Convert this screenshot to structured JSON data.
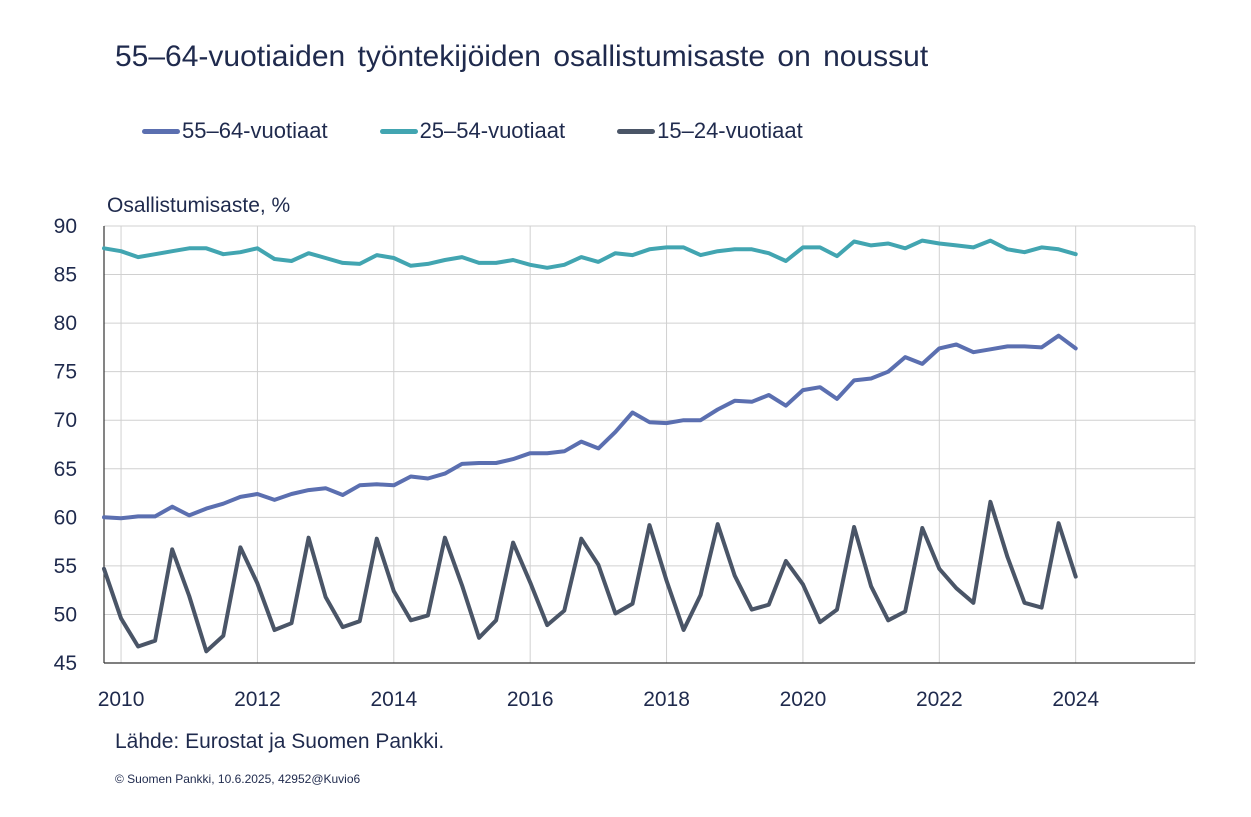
{
  "title": "55–64-vuotiaiden työntekijöiden osallistumisaste on noussut",
  "source": "Lähde: Eurostat ja Suomen Pankki.",
  "copyright": "© Suomen Pankki, 10.6.2025,  42952@Kuvio6",
  "colors": {
    "s55_64": "#5b6fb0",
    "s25_54": "#42a5b1",
    "s15_24": "#4a5567",
    "grid": "#d0d0d0",
    "axis": "#333333",
    "text": "#1f2a4d"
  },
  "chart_data": {
    "type": "line",
    "title": "55–64-vuotiaiden työntekijöiden osallistumisaste on noussut",
    "ylabel": "Osallistumisaste, %",
    "xlabel": "",
    "ylim": [
      45,
      90
    ],
    "yticks": [
      45,
      50,
      55,
      60,
      65,
      70,
      75,
      80,
      85,
      90
    ],
    "xlim": [
      2009.75,
      2025.75
    ],
    "xticks": [
      2010,
      2012,
      2014,
      2016,
      2018,
      2020,
      2022,
      2024
    ],
    "x_start": 2009.75,
    "x_step": 0.25,
    "grid": true,
    "legend": "top",
    "series": [
      {
        "name": "55–64-vuotiaat",
        "color_key": "s55_64",
        "values": [
          60.0,
          59.9,
          60.1,
          60.1,
          61.1,
          60.2,
          60.9,
          61.4,
          62.1,
          62.4,
          61.8,
          62.4,
          62.8,
          63.0,
          62.3,
          63.3,
          63.4,
          63.3,
          64.2,
          64.0,
          64.5,
          65.5,
          65.6,
          65.6,
          66.0,
          66.6,
          66.6,
          66.8,
          67.8,
          67.1,
          68.8,
          70.8,
          69.8,
          69.7,
          70.0,
          70.0,
          71.1,
          72.0,
          71.9,
          72.6,
          71.5,
          73.1,
          73.4,
          72.2,
          74.1,
          74.3,
          75.0,
          76.5,
          75.8,
          77.4,
          77.8,
          77.0,
          77.3,
          77.6,
          77.6,
          77.5,
          78.7,
          77.4
        ]
      },
      {
        "name": "25–54-vuotiaat",
        "color_key": "s25_54",
        "values": [
          87.7,
          87.4,
          86.8,
          87.1,
          87.4,
          87.7,
          87.7,
          87.1,
          87.3,
          87.7,
          86.6,
          86.4,
          87.2,
          86.7,
          86.2,
          86.1,
          87.0,
          86.7,
          85.9,
          86.1,
          86.5,
          86.8,
          86.2,
          86.2,
          86.5,
          86.0,
          85.7,
          86.0,
          86.8,
          86.3,
          87.2,
          87.0,
          87.6,
          87.8,
          87.8,
          87.0,
          87.4,
          87.6,
          87.6,
          87.2,
          86.4,
          87.8,
          87.8,
          86.9,
          88.4,
          88.0,
          88.2,
          87.7,
          88.5,
          88.2,
          88.0,
          87.8,
          88.5,
          87.6,
          87.3,
          87.8,
          87.6,
          87.1
        ]
      },
      {
        "name": "15–24-vuotiaat",
        "color_key": "s15_24",
        "values": [
          54.7,
          49.6,
          46.7,
          47.3,
          56.7,
          51.9,
          46.2,
          47.8,
          56.9,
          53.2,
          48.4,
          49.1,
          57.9,
          51.8,
          48.7,
          49.3,
          57.8,
          52.4,
          49.4,
          49.9,
          57.9,
          53.0,
          47.6,
          49.4,
          57.4,
          53.3,
          48.9,
          50.4,
          57.8,
          55.1,
          50.1,
          51.1,
          59.2,
          53.5,
          48.4,
          52.0,
          59.3,
          54.0,
          50.5,
          51.0,
          55.5,
          53.1,
          49.2,
          50.5,
          59.0,
          52.9,
          49.4,
          50.3,
          58.9,
          54.7,
          52.7,
          51.2,
          61.6,
          55.9,
          51.2,
          50.7,
          59.4,
          53.9
        ]
      }
    ]
  }
}
